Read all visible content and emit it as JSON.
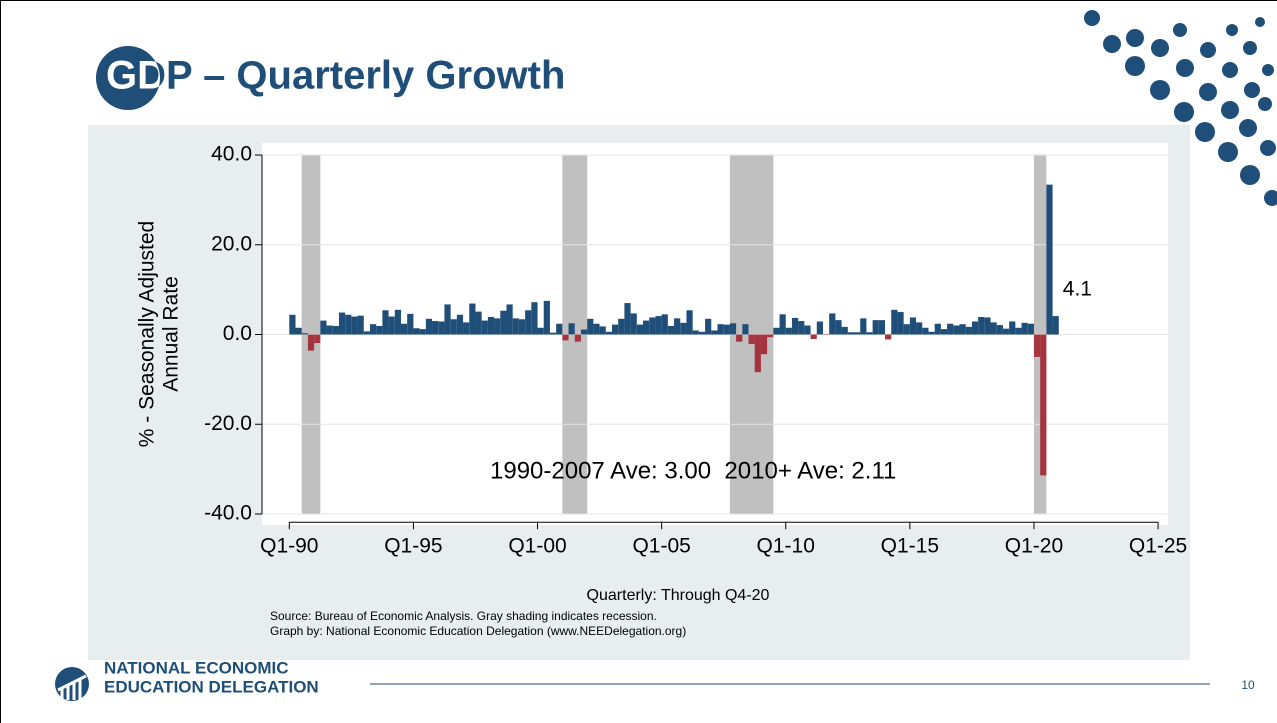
{
  "header": {
    "title": "GDP – Quarterly Growth"
  },
  "chart_data": {
    "type": "bar",
    "y_label": [
      "% - Seasonally Adjusted",
      "Annual Rate"
    ],
    "x_label": "Quarterly: Through Q4-20",
    "source": [
      "Source: Bureau of Economic Analysis. Gray shading indicates recession.",
      "Graph by: National Economic Education Delegation (www.NEEDelegation.org)"
    ],
    "annotation": "1990-2007 Ave: 3.00  2010+ Ave: 2.11",
    "x": [
      1990,
      1990.25,
      1990.5,
      1990.75,
      1991,
      1991.25,
      1991.5,
      1991.75,
      1992,
      1992.25,
      1992.5,
      1992.75,
      1993,
      1993.25,
      1993.5,
      1993.75,
      1994,
      1994.25,
      1994.5,
      1994.75,
      1995,
      1995.25,
      1995.5,
      1995.75,
      1996,
      1996.25,
      1996.5,
      1996.75,
      1997,
      1997.25,
      1997.5,
      1997.75,
      1998,
      1998.25,
      1998.5,
      1998.75,
      1999,
      1999.25,
      1999.5,
      1999.75,
      2000,
      2000.25,
      2000.5,
      2000.75,
      2001,
      2001.25,
      2001.5,
      2001.75,
      2002,
      2002.25,
      2002.5,
      2002.75,
      2003,
      2003.25,
      2003.5,
      2003.75,
      2004,
      2004.25,
      2004.5,
      2004.75,
      2005,
      2005.25,
      2005.5,
      2005.75,
      2006,
      2006.25,
      2006.5,
      2006.75,
      2007,
      2007.25,
      2007.5,
      2007.75,
      2008,
      2008.25,
      2008.5,
      2008.75,
      2009,
      2009.25,
      2009.5,
      2009.75,
      2010,
      2010.25,
      2010.5,
      2010.75,
      2011,
      2011.25,
      2011.5,
      2011.75,
      2012,
      2012.25,
      2012.5,
      2012.75,
      2013,
      2013.25,
      2013.5,
      2013.75,
      2014,
      2014.25,
      2014.5,
      2014.75,
      2015,
      2015.25,
      2015.5,
      2015.75,
      2016,
      2016.25,
      2016.5,
      2016.75,
      2017,
      2017.25,
      2017.5,
      2017.75,
      2018,
      2018.25,
      2018.5,
      2018.75,
      2019,
      2019.25,
      2019.5,
      2019.75,
      2020,
      2020.25,
      2020.5,
      2020.75
    ],
    "values": [
      4.4,
      1.5,
      0.3,
      -3.6,
      -1.9,
      3.1,
      2.0,
      1.9,
      4.9,
      4.4,
      4.0,
      4.2,
      0.7,
      2.3,
      1.9,
      5.4,
      4.0,
      5.5,
      2.4,
      4.6,
      1.4,
      1.2,
      3.5,
      3.0,
      2.9,
      6.7,
      3.4,
      4.4,
      2.7,
      6.9,
      5.1,
      3.1,
      3.9,
      3.6,
      5.3,
      6.7,
      3.6,
      3.4,
      5.4,
      7.2,
      1.5,
      7.5,
      0.4,
      2.4,
      -1.3,
      2.5,
      -1.6,
      1.1,
      3.5,
      2.4,
      1.8,
      0.6,
      2.2,
      3.5,
      7.0,
      4.7,
      2.2,
      3.1,
      3.8,
      4.1,
      4.5,
      1.9,
      3.6,
      2.6,
      5.4,
      0.9,
      0.6,
      3.5,
      0.9,
      2.3,
      2.2,
      2.5,
      -1.6,
      2.3,
      -2.1,
      -8.4,
      -4.4,
      -0.6,
      1.5,
      4.5,
      1.5,
      3.7,
      3.0,
      2.0,
      -1.0,
      2.9,
      -0.1,
      4.7,
      3.2,
      1.7,
      0.5,
      0.5,
      3.6,
      0.5,
      3.2,
      3.2,
      -1.1,
      5.5,
      5.0,
      2.3,
      3.8,
      2.7,
      1.5,
      0.6,
      2.4,
      1.2,
      2.4,
      2.0,
      2.3,
      1.7,
      2.9,
      3.9,
      3.8,
      2.7,
      2.1,
      1.3,
      2.9,
      1.5,
      2.6,
      2.4,
      -5.0,
      -31.4,
      33.4,
      4.1
    ],
    "color": "#1f4e79",
    "negative_color": "#a5343f",
    "recessions": [
      [
        1990.5,
        1991.25
      ],
      [
        2001,
        2002
      ],
      [
        2007.75,
        2009.5
      ],
      [
        2020,
        2020.5
      ]
    ],
    "xlim": [
      1988.9,
      2025.4
    ],
    "xticks": [
      {
        "value": 1990,
        "label": "Q1-90"
      },
      {
        "value": 1995,
        "label": "Q1-95"
      },
      {
        "value": 2000,
        "label": "Q1-00"
      },
      {
        "value": 2005,
        "label": "Q1-05"
      },
      {
        "value": 2010,
        "label": "Q1-10"
      },
      {
        "value": 2015,
        "label": "Q1-15"
      },
      {
        "value": 2020,
        "label": "Q1-20"
      },
      {
        "value": 2025,
        "label": "Q1-25"
      }
    ],
    "ylim": [
      -42.5,
      42.5
    ],
    "yticks": [
      {
        "value": 40,
        "label": "40.0"
      },
      {
        "value": 20,
        "label": "20.0"
      },
      {
        "value": 0,
        "label": "0.0"
      },
      {
        "value": -20,
        "label": "-20.0"
      },
      {
        "value": -40,
        "label": "-40.0"
      }
    ],
    "grid": true
  },
  "footer": {
    "org": [
      "NATIONAL ECONOMIC",
      "EDUCATION DELEGATION"
    ],
    "page": "10"
  }
}
